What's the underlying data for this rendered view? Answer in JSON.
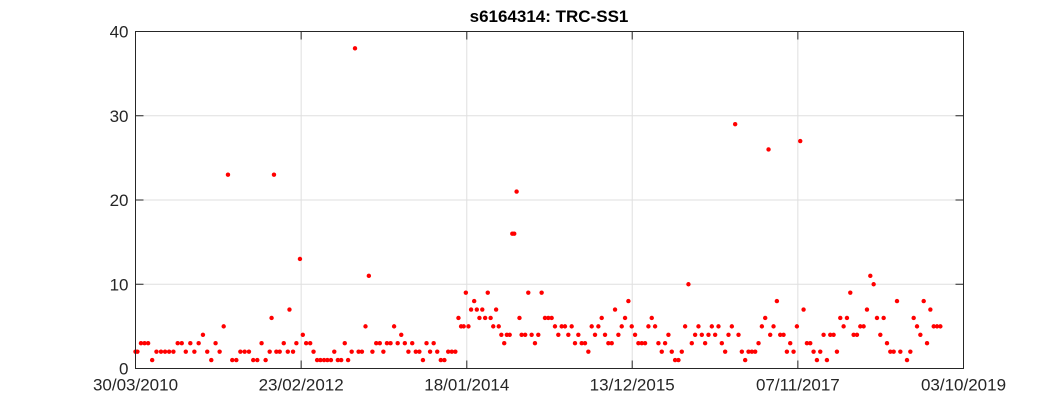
{
  "chart_data": {
    "type": "scatter",
    "title": "s6164314: TRC-SS1",
    "xlabel": "",
    "ylabel": "",
    "grid": true,
    "marker_color": "#ff0000",
    "xlim": [
      "30/03/2010",
      "03/10/2019"
    ],
    "ylim": [
      0,
      40
    ],
    "x_ticks": [
      "30/03/2010",
      "23/02/2012",
      "18/01/2014",
      "13/12/2015",
      "07/11/2017",
      "03/10/2019"
    ],
    "y_ticks": [
      0,
      10,
      20,
      30,
      40
    ],
    "points": [
      [
        "30/03/2010",
        2
      ],
      [
        "07/04/2010",
        2
      ],
      [
        "22/04/2010",
        3
      ],
      [
        "07/05/2010",
        3
      ],
      [
        "22/05/2010",
        3
      ],
      [
        "08/06/2010",
        1
      ],
      [
        "26/06/2010",
        2
      ],
      [
        "15/07/2010",
        2
      ],
      [
        "01/08/2010",
        2
      ],
      [
        "18/08/2010",
        2
      ],
      [
        "05/09/2010",
        2
      ],
      [
        "23/09/2010",
        3
      ],
      [
        "10/10/2010",
        3
      ],
      [
        "27/10/2010",
        2
      ],
      [
        "15/11/2010",
        3
      ],
      [
        "02/12/2010",
        2
      ],
      [
        "20/12/2010",
        3
      ],
      [
        "07/01/2011",
        4
      ],
      [
        "25/01/2011",
        2
      ],
      [
        "11/02/2011",
        1
      ],
      [
        "01/03/2011",
        3
      ],
      [
        "18/03/2011",
        2
      ],
      [
        "04/04/2011",
        5
      ],
      [
        "22/04/2011",
        23
      ],
      [
        "10/05/2011",
        1
      ],
      [
        "27/05/2011",
        1
      ],
      [
        "13/06/2011",
        2
      ],
      [
        "01/07/2011",
        2
      ],
      [
        "19/07/2011",
        2
      ],
      [
        "06/08/2011",
        1
      ],
      [
        "23/08/2011",
        1
      ],
      [
        "10/09/2011",
        3
      ],
      [
        "27/09/2011",
        1
      ],
      [
        "14/10/2011",
        2
      ],
      [
        "22/10/2011",
        6
      ],
      [
        "01/11/2011",
        23
      ],
      [
        "11/11/2011",
        2
      ],
      [
        "25/11/2011",
        2
      ],
      [
        "12/12/2011",
        3
      ],
      [
        "29/12/2011",
        2
      ],
      [
        "05/01/2012",
        7
      ],
      [
        "20/01/2012",
        2
      ],
      [
        "03/02/2012",
        3
      ],
      [
        "18/02/2012",
        13
      ],
      [
        "01/03/2012",
        4
      ],
      [
        "15/03/2012",
        3
      ],
      [
        "01/04/2012",
        3
      ],
      [
        "15/04/2012",
        2
      ],
      [
        "30/04/2012",
        1
      ],
      [
        "14/05/2012",
        1
      ],
      [
        "29/05/2012",
        1
      ],
      [
        "12/06/2012",
        1
      ],
      [
        "27/06/2012",
        1
      ],
      [
        "11/07/2012",
        2
      ],
      [
        "26/07/2012",
        1
      ],
      [
        "09/08/2012",
        1
      ],
      [
        "24/08/2012",
        3
      ],
      [
        "07/09/2012",
        1
      ],
      [
        "22/09/2012",
        2
      ],
      [
        "06/10/2012",
        38
      ],
      [
        "21/10/2012",
        2
      ],
      [
        "04/11/2012",
        2
      ],
      [
        "19/11/2012",
        5
      ],
      [
        "03/12/2012",
        11
      ],
      [
        "18/12/2012",
        2
      ],
      [
        "03/01/2013",
        3
      ],
      [
        "18/01/2013",
        3
      ],
      [
        "02/02/2013",
        2
      ],
      [
        "17/02/2013",
        3
      ],
      [
        "04/03/2013",
        3
      ],
      [
        "19/03/2013",
        5
      ],
      [
        "03/04/2013",
        3
      ],
      [
        "18/04/2013",
        4
      ],
      [
        "03/05/2013",
        3
      ],
      [
        "18/05/2013",
        2
      ],
      [
        "03/06/2013",
        3
      ],
      [
        "18/06/2013",
        2
      ],
      [
        "03/07/2013",
        2
      ],
      [
        "18/07/2013",
        1
      ],
      [
        "02/08/2013",
        3
      ],
      [
        "17/08/2013",
        2
      ],
      [
        "01/09/2013",
        3
      ],
      [
        "16/09/2013",
        2
      ],
      [
        "01/10/2013",
        1
      ],
      [
        "16/10/2013",
        1
      ],
      [
        "01/11/2013",
        2
      ],
      [
        "16/11/2013",
        2
      ],
      [
        "01/12/2013",
        2
      ],
      [
        "14/12/2013",
        6
      ],
      [
        "25/12/2013",
        5
      ],
      [
        "05/01/2014",
        5
      ],
      [
        "14/01/2014",
        9
      ],
      [
        "25/01/2014",
        5
      ],
      [
        "05/02/2014",
        7
      ],
      [
        "18/02/2014",
        8
      ],
      [
        "01/03/2014",
        7
      ],
      [
        "12/03/2014",
        6
      ],
      [
        "24/03/2014",
        7
      ],
      [
        "05/04/2014",
        6
      ],
      [
        "16/04/2014",
        9
      ],
      [
        "28/04/2014",
        6
      ],
      [
        "09/05/2014",
        5
      ],
      [
        "21/05/2014",
        7
      ],
      [
        "01/06/2014",
        5
      ],
      [
        "12/06/2014",
        4
      ],
      [
        "24/06/2014",
        3
      ],
      [
        "05/07/2014",
        4
      ],
      [
        "17/07/2014",
        4
      ],
      [
        "28/07/2014",
        16
      ],
      [
        "05/08/2014",
        16
      ],
      [
        "15/08/2014",
        21
      ],
      [
        "27/08/2014",
        6
      ],
      [
        "05/09/2014",
        4
      ],
      [
        "20/09/2014",
        4
      ],
      [
        "03/10/2014",
        9
      ],
      [
        "17/10/2014",
        4
      ],
      [
        "31/10/2014",
        3
      ],
      [
        "14/11/2014",
        4
      ],
      [
        "28/11/2014",
        9
      ],
      [
        "12/12/2014",
        6
      ],
      [
        "26/12/2014",
        6
      ],
      [
        "09/01/2015",
        6
      ],
      [
        "23/01/2015",
        5
      ],
      [
        "06/02/2015",
        4
      ],
      [
        "20/02/2015",
        5
      ],
      [
        "06/03/2015",
        5
      ],
      [
        "20/03/2015",
        4
      ],
      [
        "03/04/2015",
        5
      ],
      [
        "17/04/2015",
        3
      ],
      [
        "01/05/2015",
        4
      ],
      [
        "15/05/2015",
        3
      ],
      [
        "29/05/2015",
        3
      ],
      [
        "12/06/2015",
        2
      ],
      [
        "26/06/2015",
        5
      ],
      [
        "10/07/2015",
        4
      ],
      [
        "24/07/2015",
        5
      ],
      [
        "07/08/2015",
        6
      ],
      [
        "21/08/2015",
        4
      ],
      [
        "04/09/2015",
        3
      ],
      [
        "18/09/2015",
        3
      ],
      [
        "02/10/2015",
        7
      ],
      [
        "16/10/2015",
        4
      ],
      [
        "30/10/2015",
        5
      ],
      [
        "13/11/2015",
        6
      ],
      [
        "27/11/2015",
        8
      ],
      [
        "11/12/2015",
        5
      ],
      [
        "25/12/2015",
        4
      ],
      [
        "08/01/2016",
        3
      ],
      [
        "22/01/2016",
        3
      ],
      [
        "05/02/2016",
        3
      ],
      [
        "19/02/2016",
        5
      ],
      [
        "04/03/2016",
        6
      ],
      [
        "18/03/2016",
        5
      ],
      [
        "01/04/2016",
        3
      ],
      [
        "15/04/2016",
        2
      ],
      [
        "29/04/2016",
        3
      ],
      [
        "13/05/2016",
        4
      ],
      [
        "27/05/2016",
        2
      ],
      [
        "10/06/2016",
        1
      ],
      [
        "24/06/2016",
        1
      ],
      [
        "08/07/2016",
        2
      ],
      [
        "22/07/2016",
        5
      ],
      [
        "05/08/2016",
        10
      ],
      [
        "19/08/2016",
        3
      ],
      [
        "02/09/2016",
        4
      ],
      [
        "16/09/2016",
        5
      ],
      [
        "30/09/2016",
        4
      ],
      [
        "14/10/2016",
        3
      ],
      [
        "28/10/2016",
        4
      ],
      [
        "11/11/2016",
        5
      ],
      [
        "25/11/2016",
        4
      ],
      [
        "09/12/2016",
        5
      ],
      [
        "23/12/2016",
        3
      ],
      [
        "06/01/2017",
        2
      ],
      [
        "20/01/2017",
        4
      ],
      [
        "03/02/2017",
        5
      ],
      [
        "17/02/2017",
        29
      ],
      [
        "03/03/2017",
        4
      ],
      [
        "17/03/2017",
        2
      ],
      [
        "31/03/2017",
        1
      ],
      [
        "14/04/2017",
        2
      ],
      [
        "28/04/2017",
        2
      ],
      [
        "12/05/2017",
        2
      ],
      [
        "26/05/2017",
        3
      ],
      [
        "09/06/2017",
        5
      ],
      [
        "23/06/2017",
        6
      ],
      [
        "07/07/2017",
        26
      ],
      [
        "14/07/2017",
        4
      ],
      [
        "28/07/2017",
        5
      ],
      [
        "11/08/2017",
        8
      ],
      [
        "25/08/2017",
        4
      ],
      [
        "08/09/2017",
        4
      ],
      [
        "22/09/2017",
        2
      ],
      [
        "06/10/2017",
        3
      ],
      [
        "20/10/2017",
        2
      ],
      [
        "03/11/2017",
        5
      ],
      [
        "17/11/2017",
        27
      ],
      [
        "01/12/2017",
        7
      ],
      [
        "15/12/2017",
        3
      ],
      [
        "29/12/2017",
        3
      ],
      [
        "12/01/2018",
        2
      ],
      [
        "26/01/2018",
        1
      ],
      [
        "09/02/2018",
        2
      ],
      [
        "23/02/2018",
        4
      ],
      [
        "09/03/2018",
        1
      ],
      [
        "23/03/2018",
        4
      ],
      [
        "06/04/2018",
        4
      ],
      [
        "20/04/2018",
        2
      ],
      [
        "04/05/2018",
        6
      ],
      [
        "18/05/2018",
        5
      ],
      [
        "01/06/2018",
        6
      ],
      [
        "15/06/2018",
        9
      ],
      [
        "29/06/2018",
        4
      ],
      [
        "13/07/2018",
        4
      ],
      [
        "27/07/2018",
        5
      ],
      [
        "10/08/2018",
        5
      ],
      [
        "24/08/2018",
        7
      ],
      [
        "07/09/2018",
        11
      ],
      [
        "21/09/2018",
        10
      ],
      [
        "05/10/2018",
        6
      ],
      [
        "19/10/2018",
        4
      ],
      [
        "02/11/2018",
        6
      ],
      [
        "16/11/2018",
        3
      ],
      [
        "30/11/2018",
        2
      ],
      [
        "14/12/2018",
        2
      ],
      [
        "28/12/2018",
        8
      ],
      [
        "11/01/2019",
        2
      ],
      [
        "08/02/2019",
        1
      ],
      [
        "22/02/2019",
        2
      ],
      [
        "08/03/2019",
        6
      ],
      [
        "22/03/2019",
        5
      ],
      [
        "05/04/2019",
        4
      ],
      [
        "19/04/2019",
        8
      ],
      [
        "03/05/2019",
        3
      ],
      [
        "17/05/2019",
        7
      ],
      [
        "31/05/2019",
        5
      ],
      [
        "14/06/2019",
        5
      ],
      [
        "28/06/2019",
        5
      ]
    ]
  }
}
